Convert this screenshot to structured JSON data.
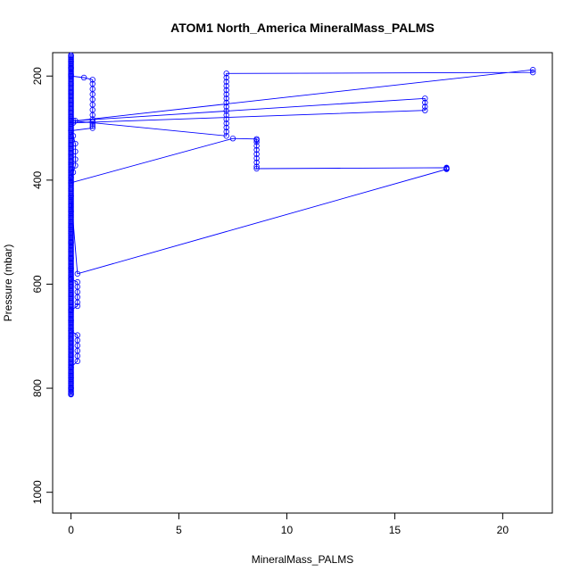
{
  "chart_data": {
    "type": "scatter",
    "title": "ATOM1 North_America MineralMass_PALMS",
    "xlabel": "MineralMass_PALMS",
    "ylabel": "Pressure (mbar)",
    "xlim": [
      -0.85,
      22.3
    ],
    "ylim": [
      1040,
      155
    ],
    "y_reversed": true,
    "x_ticks": [
      0,
      5,
      10,
      15,
      20
    ],
    "y_ticks": [
      200,
      400,
      600,
      800,
      1000
    ],
    "grid": false,
    "legend": "none",
    "colors": {
      "series": "#0000ff",
      "axis": "#000000"
    },
    "series": [
      {
        "marker": "open-circle",
        "connected": true,
        "points": [
          [
            0.0,
            160
          ],
          [
            0.0,
            172
          ],
          [
            0.0,
            185
          ],
          [
            0.0,
            197
          ],
          [
            0.0,
            200
          ],
          [
            0.6,
            203
          ],
          [
            1.0,
            207
          ],
          [
            1.0,
            215
          ],
          [
            1.0,
            225
          ],
          [
            1.0,
            235
          ],
          [
            1.0,
            245
          ],
          [
            1.0,
            255
          ],
          [
            1.0,
            265
          ],
          [
            1.0,
            275
          ],
          [
            1.0,
            283
          ],
          [
            0.2,
            286
          ],
          [
            21.4,
            188
          ],
          [
            21.4,
            193
          ],
          [
            7.2,
            195
          ],
          [
            7.2,
            203
          ],
          [
            7.2,
            211
          ],
          [
            7.2,
            219
          ],
          [
            7.2,
            227
          ],
          [
            7.2,
            235
          ],
          [
            7.2,
            243
          ],
          [
            7.2,
            251
          ],
          [
            7.2,
            259
          ],
          [
            7.2,
            267
          ],
          [
            7.2,
            275
          ],
          [
            7.2,
            283
          ],
          [
            7.2,
            291
          ],
          [
            7.2,
            299
          ],
          [
            7.2,
            307
          ],
          [
            7.2,
            315
          ],
          [
            0.1,
            286
          ],
          [
            16.4,
            243
          ],
          [
            16.4,
            251
          ],
          [
            16.4,
            259
          ],
          [
            16.4,
            266
          ],
          [
            0.1,
            290
          ],
          [
            1.0,
            288
          ],
          [
            1.0,
            292
          ],
          [
            1.0,
            296
          ],
          [
            1.0,
            300
          ],
          [
            0.0,
            305
          ],
          [
            0.1,
            315
          ],
          [
            0.2,
            330
          ],
          [
            0.2,
            345
          ],
          [
            0.2,
            360
          ],
          [
            0.2,
            372
          ],
          [
            0.1,
            385
          ],
          [
            0.0,
            395
          ],
          [
            0.0,
            405
          ],
          [
            7.5,
            320
          ],
          [
            8.6,
            321
          ],
          [
            8.6,
            323
          ],
          [
            8.6,
            327
          ],
          [
            8.6,
            334
          ],
          [
            8.6,
            342
          ],
          [
            8.6,
            350
          ],
          [
            8.6,
            358
          ],
          [
            8.6,
            366
          ],
          [
            8.6,
            374
          ],
          [
            8.6,
            378
          ],
          [
            17.4,
            376
          ],
          [
            17.4,
            377
          ],
          [
            17.4,
            378
          ],
          [
            17.4,
            379
          ],
          [
            0.3,
            580
          ],
          [
            0.0,
            430
          ],
          [
            0.0,
            460
          ],
          [
            0.0,
            490
          ],
          [
            0.0,
            520
          ],
          [
            0.0,
            550
          ],
          [
            0.0,
            570
          ],
          [
            0.0,
            590
          ],
          [
            0.3,
            596
          ],
          [
            0.3,
            605
          ],
          [
            0.3,
            615
          ],
          [
            0.3,
            625
          ],
          [
            0.3,
            635
          ],
          [
            0.3,
            642
          ],
          [
            0.0,
            650
          ],
          [
            0.0,
            670
          ],
          [
            0.0,
            690
          ],
          [
            0.3,
            698
          ],
          [
            0.3,
            708
          ],
          [
            0.3,
            718
          ],
          [
            0.3,
            728
          ],
          [
            0.3,
            738
          ],
          [
            0.3,
            748
          ],
          [
            0.0,
            760
          ],
          [
            0.0,
            780
          ],
          [
            0.0,
            800
          ],
          [
            0.0,
            812
          ]
        ],
        "dense_near_zero": {
          "x": 0.0,
          "pressure_range": [
            160,
            812
          ]
        }
      }
    ]
  }
}
